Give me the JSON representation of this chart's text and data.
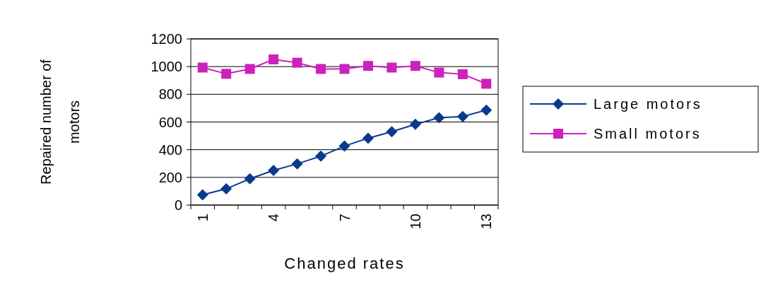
{
  "chart_data": {
    "type": "line",
    "xlabel": "Changed rates",
    "ylabel": "Repaired number of motors",
    "categories": [
      "1",
      null,
      null,
      "4",
      null,
      null,
      "7",
      null,
      null,
      "10",
      null,
      null,
      "13"
    ],
    "series": [
      {
        "name": "Large motors",
        "color": "#0a3a8c",
        "marker": "diamond",
        "values": [
          74,
          117,
          190,
          250,
          298,
          353,
          426,
          483,
          530,
          583,
          631,
          640,
          686
        ]
      },
      {
        "name": "Small motors",
        "color": "#cc22bb",
        "marker": "square",
        "values": [
          993,
          948,
          983,
          1052,
          1028,
          983,
          983,
          1005,
          993,
          1005,
          957,
          945,
          876
        ]
      }
    ],
    "ylim": [
      0,
      1200
    ],
    "yticks": [
      0,
      200,
      400,
      600,
      800,
      1000,
      1200
    ],
    "grid": "y",
    "legend": "right"
  }
}
